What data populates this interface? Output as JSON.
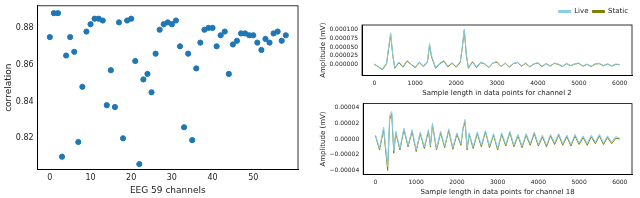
{
  "chart_data": [
    {
      "type": "scatter",
      "xlabel": "EEG 59 channels",
      "ylabel": "correlation",
      "color": "#1f77b4",
      "marker": "circle",
      "grid": false,
      "x": [
        0,
        1,
        2,
        3,
        4,
        5,
        6,
        7,
        8,
        9,
        10,
        11,
        12,
        13,
        14,
        15,
        16,
        17,
        18,
        19,
        20,
        21,
        22,
        23,
        24,
        25,
        26,
        27,
        28,
        29,
        30,
        31,
        32,
        33,
        34,
        35,
        36,
        37,
        38,
        39,
        40,
        41,
        42,
        43,
        44,
        45,
        46,
        47,
        48,
        49,
        50,
        51,
        52,
        53,
        54,
        55,
        56,
        57,
        58
      ],
      "values": [
        0.875,
        0.888,
        0.888,
        0.81,
        0.865,
        0.875,
        0.867,
        0.818,
        0.848,
        0.878,
        0.882,
        0.885,
        0.885,
        0.884,
        0.838,
        0.857,
        0.837,
        0.883,
        0.82,
        0.884,
        0.885,
        0.862,
        0.806,
        0.852,
        0.855,
        0.845,
        0.866,
        0.879,
        0.882,
        0.883,
        0.882,
        0.884,
        0.87,
        0.826,
        0.866,
        0.819,
        0.858,
        0.872,
        0.879,
        0.88,
        0.88,
        0.87,
        0.876,
        0.878,
        0.855,
        0.871,
        0.873,
        0.877,
        0.877,
        0.876,
        0.876,
        0.872,
        0.868,
        0.874,
        0.872,
        0.877,
        0.878,
        0.873,
        0.876
      ],
      "xlim": [
        -3,
        61
      ],
      "xticks": [
        0,
        10,
        20,
        30,
        40,
        50
      ],
      "ylim": [
        0.803,
        0.892
      ],
      "yticks": [
        0.82,
        0.84,
        0.86,
        0.88
      ]
    },
    {
      "type": "line",
      "xlabel": "Sample length in data points for channel 2",
      "ylabel": "Amplitude (mV)",
      "grid": false,
      "legend": "upper right",
      "x": [
        0,
        100,
        200,
        300,
        350,
        400,
        450,
        500,
        600,
        700,
        800,
        900,
        1000,
        1100,
        1200,
        1300,
        1350,
        1400,
        1500,
        1600,
        1700,
        1800,
        1900,
        2000,
        2100,
        2150,
        2200,
        2250,
        2300,
        2400,
        2500,
        2600,
        2700,
        2800,
        2900,
        3000,
        3100,
        3200,
        3300,
        3400,
        3500,
        3600,
        3700,
        3800,
        3900,
        4000,
        4100,
        4200,
        4300,
        4400,
        4500,
        4600,
        4700,
        4800,
        4900,
        5000,
        5100,
        5200,
        5300,
        5400,
        5500,
        5600,
        5700,
        5800,
        5900,
        6000
      ],
      "series": [
        {
          "name": "Live",
          "color": "#87ceeb",
          "values": [
            2e-06,
            -5e-06,
            -1.2e-05,
            5e-06,
            5e-05,
            9e-05,
            3e-05,
            -8e-06,
            8e-06,
            -5e-06,
            1.2e-05,
            2e-06,
            -6e-06,
            8e-06,
            -3e-06,
            1e-05,
            6e-05,
            2.5e-05,
            -8e-06,
            5e-06,
            1.2e-05,
            -4e-06,
            6e-06,
            -5e-06,
            8e-06,
            5e-05,
            0.0001,
            3e-05,
            -8e-06,
            1e-05,
            -6e-06,
            8e-06,
            3e-06,
            -7e-06,
            6e-06,
            9e-06,
            -4e-06,
            5e-06,
            -6e-06,
            4e-06,
            7e-06,
            -3e-06,
            5e-06,
            -5e-06,
            3e-06,
            6e-06,
            -4e-06,
            4e-06,
            -3e-06,
            5e-06,
            2e-06,
            -4e-06,
            4e-06,
            -2e-06,
            3e-06,
            5e-06,
            -3e-06,
            2e-06,
            -4e-06,
            3e-06,
            4e-06,
            -2e-06,
            3e-06,
            -3e-06,
            2e-06,
            1e-06
          ]
        },
        {
          "name": "Static",
          "color": "#808000",
          "values": [
            1e-06,
            -6e-06,
            -1.4e-05,
            3e-06,
            4.5e-05,
            8.5e-05,
            2.8e-05,
            -1e-05,
            6e-06,
            -7e-06,
            1e-05,
            1e-06,
            -8e-06,
            6e-06,
            -5e-06,
            8e-06,
            5.5e-05,
            2.2e-05,
            -1e-05,
            3e-06,
            1e-05,
            -6e-06,
            4e-06,
            -7e-06,
            6e-06,
            4.6e-05,
            9.7e-05,
            2.7e-05,
            -1e-05,
            8e-06,
            -8e-06,
            6e-06,
            2e-06,
            -8e-06,
            5e-06,
            7e-06,
            -5e-06,
            4e-06,
            -7e-06,
            3e-06,
            6e-06,
            -4e-06,
            4e-06,
            -6e-06,
            2e-06,
            5e-06,
            -5e-06,
            3e-06,
            -4e-06,
            4e-06,
            1e-06,
            -5e-06,
            3e-06,
            -3e-06,
            2e-06,
            4e-06,
            -4e-06,
            1e-06,
            -5e-06,
            2e-06,
            3e-06,
            -3e-06,
            2e-06,
            -4e-06,
            1e-06,
            0
          ]
        }
      ],
      "xlim": [
        -300,
        6300
      ],
      "xticks": [
        0,
        1000,
        2000,
        3000,
        4000,
        5000,
        6000
      ],
      "ylim": [
        -3e-05,
        0.000112
      ],
      "yticks": [
        {
          "value": 0,
          "label": "0.000000"
        },
        {
          "value": 2.5e-05,
          "label": "0.000025"
        },
        {
          "value": 5e-05,
          "label": "0.000050"
        },
        {
          "value": 7.5e-05,
          "label": "0.000075"
        },
        {
          "value": 0.0001,
          "label": "0.000100"
        }
      ]
    },
    {
      "type": "line",
      "xlabel": "Sample length in data points for channel 18",
      "ylabel": "Amplitude (mV)",
      "grid": false,
      "x": [
        0,
        100,
        200,
        300,
        350,
        400,
        450,
        500,
        600,
        700,
        800,
        900,
        1000,
        1100,
        1200,
        1300,
        1350,
        1400,
        1500,
        1600,
        1700,
        1800,
        1900,
        2000,
        2100,
        2150,
        2200,
        2250,
        2300,
        2400,
        2500,
        2600,
        2700,
        2800,
        2900,
        3000,
        3100,
        3200,
        3300,
        3400,
        3500,
        3600,
        3700,
        3800,
        3900,
        4000,
        4100,
        4200,
        4300,
        4400,
        4500,
        4600,
        4700,
        4800,
        4900,
        5000,
        5100,
        5200,
        5300,
        5400,
        5500,
        5600,
        5700,
        5800,
        5900,
        6000
      ],
      "series": [
        {
          "name": "Live",
          "color": "#87ceeb",
          "values": [
            5e-06,
            -1.2e-05,
            1.5e-05,
            -3.5e-05,
            3e-05,
            3.5e-05,
            -1.5e-05,
            1e-05,
            -1.2e-05,
            1.4e-05,
            -8e-06,
            1.2e-05,
            -1.4e-05,
            9e-06,
            -1e-05,
            1.2e-05,
            -8e-06,
            2e-05,
            -1.2e-05,
            1e-05,
            -9e-06,
            1.3e-05,
            -1.1e-05,
            8e-06,
            -6e-06,
            1.5e-05,
            2.5e-05,
            -1.2e-05,
            8e-06,
            -1e-05,
            9e-06,
            -8e-06,
            1.1e-05,
            -9e-06,
            7e-06,
            -1.2e-05,
            8e-06,
            -7e-06,
            1e-05,
            -8e-06,
            6e-06,
            -9e-06,
            7e-06,
            -6e-06,
            9e-06,
            -7e-06,
            5e-06,
            -8e-06,
            6e-06,
            -5e-06,
            7e-06,
            -6e-06,
            5e-06,
            -7e-06,
            6e-06,
            -5e-06,
            4e-06,
            -6e-06,
            5e-06,
            -4e-06,
            6e-06,
            -5e-06,
            4e-06,
            -4e-06,
            3e-06,
            1e-06
          ]
        },
        {
          "name": "Static",
          "color": "#808000",
          "values": [
            4e-06,
            -1.4e-05,
            1.2e-05,
            -4e-05,
            2.5e-05,
            3.2e-05,
            -1.8e-05,
            8e-06,
            -1.4e-05,
            1.2e-05,
            -1e-05,
            1e-05,
            -1.6e-05,
            7e-06,
            -1.2e-05,
            1e-05,
            -1e-05,
            1.8e-05,
            -1.4e-05,
            8e-06,
            -1.1e-05,
            1.1e-05,
            -1.3e-05,
            6e-06,
            -8e-06,
            1.3e-05,
            2.2e-05,
            -1.4e-05,
            6e-06,
            -1.2e-05,
            7e-06,
            -1e-05,
            9e-06,
            -1.1e-05,
            5e-06,
            -1.4e-05,
            6e-06,
            -9e-06,
            8e-06,
            -1e-05,
            4e-06,
            -1.1e-05,
            5e-06,
            -8e-06,
            7e-06,
            -9e-06,
            3e-06,
            -1e-05,
            4e-06,
            -7e-06,
            5e-06,
            -8e-06,
            3e-06,
            -9e-06,
            4e-06,
            -7e-06,
            2e-06,
            -8e-06,
            3e-06,
            -6e-06,
            4e-06,
            -7e-06,
            2e-06,
            -6e-06,
            1e-06,
            0
          ]
        }
      ],
      "xlim": [
        -300,
        6300
      ],
      "xticks": [
        0,
        1000,
        2000,
        3000,
        4000,
        5000,
        6000
      ],
      "ylim": [
        -4.5e-05,
        4.5e-05
      ],
      "yticks": [
        {
          "value": -4e-05,
          "label": "−0.00004"
        },
        {
          "value": -2e-05,
          "label": "−0.00002"
        },
        {
          "value": 0,
          "label": "0.00000"
        },
        {
          "value": 2e-05,
          "label": "0.00002"
        },
        {
          "value": 4e-05,
          "label": "0.00004"
        }
      ]
    }
  ]
}
